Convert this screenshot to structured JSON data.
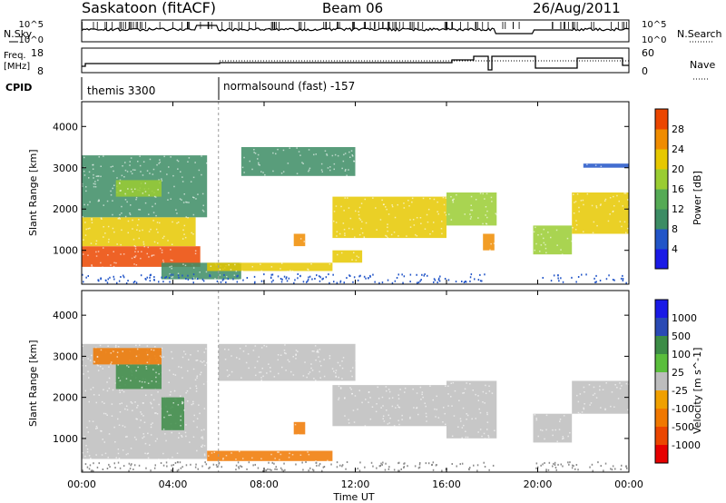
{
  "header": {
    "station": "Saskatoon (fitACF)",
    "beam": "Beam 06",
    "date": "26/Aug/2011"
  },
  "top_panels": {
    "nsky_label": "N.Sky",
    "nsky_ticks": [
      "10^5",
      "10^0"
    ],
    "nsearch_label": "N.Search",
    "nsearch_ticks": [
      "10^5",
      "10^0"
    ],
    "freq_label_1": "Freq.",
    "freq_label_2": "[MHz]",
    "freq_ticks": [
      "18",
      "8"
    ],
    "nave_label": "Nave",
    "nave_ticks": [
      "60",
      "0"
    ],
    "cpid_label": "CPID",
    "cpid_modes": [
      {
        "label": "themis 3300",
        "start_hour": 0
      },
      {
        "label": "normalsound (fast) -157",
        "start_hour": 6
      }
    ]
  },
  "x_axis": {
    "label": "Time UT",
    "ticks": [
      "00:00",
      "04:00",
      "08:00",
      "12:00",
      "16:00",
      "20:00",
      "00:00"
    ]
  },
  "colors": {
    "ground_scatter": "#bdbdbd",
    "power_scale": [
      "#1a1ae6",
      "#2255c8",
      "#3c8c64",
      "#55aa55",
      "#9acd32",
      "#e6c800",
      "#f08c00",
      "#eb4600",
      "#e60000"
    ],
    "velocity_scale": [
      "#1a1ae6",
      "#2a4ab4",
      "#3c8c46",
      "#5abe3c",
      "#bdbdbd",
      "#f0a000",
      "#f07800",
      "#eb4600",
      "#e60000"
    ]
  },
  "chart_data": [
    {
      "type": "heatmap",
      "name": "power",
      "ylabel": "Slant Range [km]",
      "xlabel": "Time UT",
      "xlim": [
        0,
        24
      ],
      "ylim": [
        180,
        4600
      ],
      "yticks": [
        "1000",
        "2000",
        "3000",
        "4000"
      ],
      "colorbar_label": "Power [dB]",
      "colorbar_ticks": [
        "4",
        "8",
        "12",
        "16",
        "20",
        "24",
        "28"
      ],
      "clim": [
        0,
        30
      ],
      "regions": [
        {
          "t0": 0.0,
          "t1": 5.2,
          "r0": 600,
          "r1": 1100,
          "db": 28
        },
        {
          "t0": 0.0,
          "t1": 5.0,
          "r0": 1100,
          "r1": 1800,
          "db": 20
        },
        {
          "t0": 0.0,
          "t1": 5.5,
          "r0": 1800,
          "r1": 3300,
          "db": 8
        },
        {
          "t0": 1.5,
          "t1": 3.5,
          "r0": 2300,
          "r1": 2700,
          "db": 16
        },
        {
          "t0": 3.5,
          "t1": 7.0,
          "r0": 300,
          "r1": 700,
          "db": 6
        },
        {
          "t0": 5.5,
          "t1": 11.0,
          "r0": 500,
          "r1": 700,
          "db": 20
        },
        {
          "t0": 9.3,
          "t1": 9.8,
          "r0": 1100,
          "r1": 1400,
          "db": 24
        },
        {
          "t0": 11.0,
          "t1": 12.3,
          "r0": 700,
          "r1": 1000,
          "db": 20
        },
        {
          "t0": 11.0,
          "t1": 16.0,
          "r0": 1300,
          "r1": 2300,
          "db": 18
        },
        {
          "t0": 7.0,
          "t1": 12.0,
          "r0": 2800,
          "r1": 3500,
          "db": 6
        },
        {
          "t0": 16.0,
          "t1": 18.2,
          "r0": 1600,
          "r1": 2400,
          "db": 14
        },
        {
          "t0": 17.6,
          "t1": 18.1,
          "r0": 1000,
          "r1": 1400,
          "db": 22
        },
        {
          "t0": 19.8,
          "t1": 21.5,
          "r0": 900,
          "r1": 1600,
          "db": 14
        },
        {
          "t0": 21.5,
          "t1": 24.0,
          "r0": 1400,
          "r1": 2400,
          "db": 18
        },
        {
          "t0": 22.0,
          "t1": 24.0,
          "r0": 3000,
          "r1": 3100,
          "db": 4
        }
      ]
    },
    {
      "type": "heatmap",
      "name": "velocity",
      "ylabel": "Slant Range [km]",
      "xlabel": "Time UT",
      "xlim": [
        0,
        24
      ],
      "ylim": [
        180,
        4600
      ],
      "yticks": [
        "1000",
        "2000",
        "3000",
        "4000"
      ],
      "colorbar_label": "Velocity [m s^-1]",
      "colorbar_ticks": [
        "1000",
        "500",
        "100",
        "25",
        "-25",
        "-100",
        "-500",
        "-1000"
      ],
      "regions": [
        {
          "t0": 0.0,
          "t1": 5.5,
          "r0": 500,
          "r1": 3300,
          "v": 0
        },
        {
          "t0": 1.5,
          "t1": 3.5,
          "r0": 2200,
          "r1": 2800,
          "v": 150
        },
        {
          "t0": 3.5,
          "t1": 4.5,
          "r0": 1200,
          "r1": 2000,
          "v": 200
        },
        {
          "t0": 0.5,
          "t1": 3.5,
          "r0": 2800,
          "r1": 3200,
          "v": -120
        },
        {
          "t0": 5.5,
          "t1": 11.0,
          "r0": 450,
          "r1": 700,
          "v": -200
        },
        {
          "t0": 6.0,
          "t1": 12.0,
          "r0": 2400,
          "r1": 3300,
          "v": 0
        },
        {
          "t0": 9.3,
          "t1": 9.8,
          "r0": 1100,
          "r1": 1400,
          "v": -300
        },
        {
          "t0": 11.0,
          "t1": 16.0,
          "r0": 1300,
          "r1": 2300,
          "v": 0
        },
        {
          "t0": 16.0,
          "t1": 18.2,
          "r0": 1000,
          "r1": 2400,
          "v": 0
        },
        {
          "t0": 19.8,
          "t1": 21.5,
          "r0": 900,
          "r1": 1600,
          "v": 0
        },
        {
          "t0": 21.5,
          "t1": 24.0,
          "r0": 1600,
          "r1": 2400,
          "v": 0
        }
      ]
    }
  ]
}
